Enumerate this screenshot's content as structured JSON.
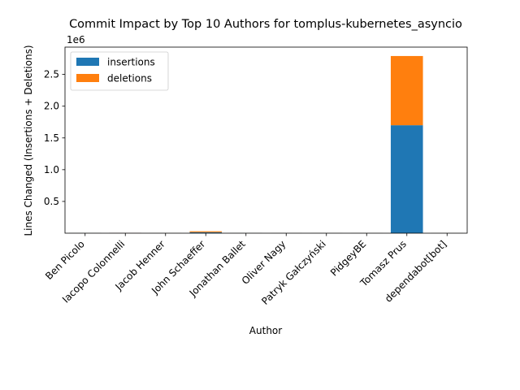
{
  "chart_data": {
    "type": "bar",
    "stacked": true,
    "title": "Commit Impact by Top 10 Authors for tomplus-kubernetes_asyncio",
    "xlabel": "Author",
    "ylabel": "Lines Changed (Insertions + Deletions)",
    "y_offset_label": "1e6",
    "ylim": [
      0,
      2.93
    ],
    "y_unit_multiplier": 1000000,
    "yticks": [
      0.5,
      1.0,
      1.5,
      2.0,
      2.5
    ],
    "ytick_labels": [
      "0.5",
      "1.0",
      "1.5",
      "2.0",
      "2.5"
    ],
    "grid": false,
    "legend_position": "upper-left",
    "categories": [
      "Ben Picolo",
      "Iacopo Colonnelli",
      "Jacob Henner",
      "John Schaeffer",
      "Jonathan Ballet",
      "Oliver Nagy",
      "Patryk Gałczyński",
      "PidgeyBE",
      "Tomasz Prus",
      "dependabot[bot]"
    ],
    "series": [
      {
        "name": "insertions",
        "color": "#1f77b4",
        "values": [
          0.002,
          0.003,
          0.001,
          0.015,
          0.002,
          0.001,
          0.001,
          0.001,
          1.7,
          0.001
        ]
      },
      {
        "name": "deletions",
        "color": "#ff7f0e",
        "values": [
          0.001,
          0.002,
          0.001,
          0.015,
          0.001,
          0.001,
          0.001,
          0.001,
          1.09,
          0.001
        ]
      }
    ]
  }
}
